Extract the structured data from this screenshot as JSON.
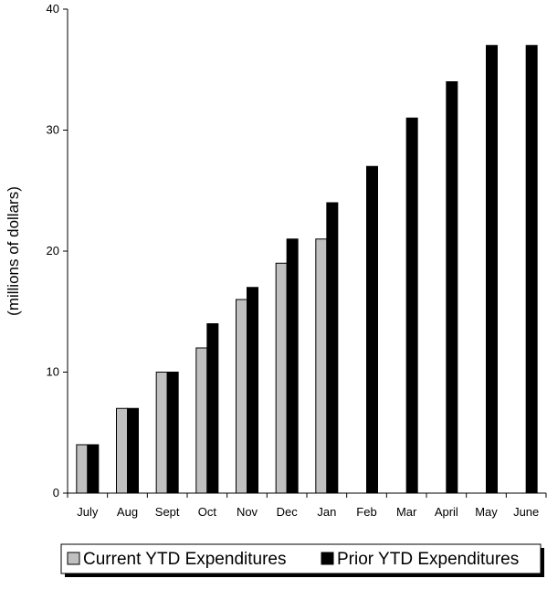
{
  "chart_data": {
    "type": "bar",
    "title": "",
    "xlabel": "",
    "ylabel": "(millions of dollars)",
    "ylim": [
      0,
      40
    ],
    "yticks": [
      0,
      10,
      20,
      30,
      40
    ],
    "grid": false,
    "legend_position": "bottom",
    "categories": [
      "July",
      "Aug",
      "Sept",
      "Oct",
      "Nov",
      "Dec",
      "Jan",
      "Feb",
      "Mar",
      "April",
      "May",
      "June"
    ],
    "series": [
      {
        "name": "Current YTD Expenditures",
        "color": "#c0c0c0",
        "values": [
          4,
          7,
          10,
          12,
          16,
          19,
          21,
          null,
          null,
          null,
          null,
          null
        ]
      },
      {
        "name": "Prior YTD Expenditures",
        "color": "#000000",
        "values": [
          4,
          7,
          10,
          14,
          17,
          21,
          24,
          27,
          31,
          34,
          37,
          37
        ]
      }
    ]
  }
}
